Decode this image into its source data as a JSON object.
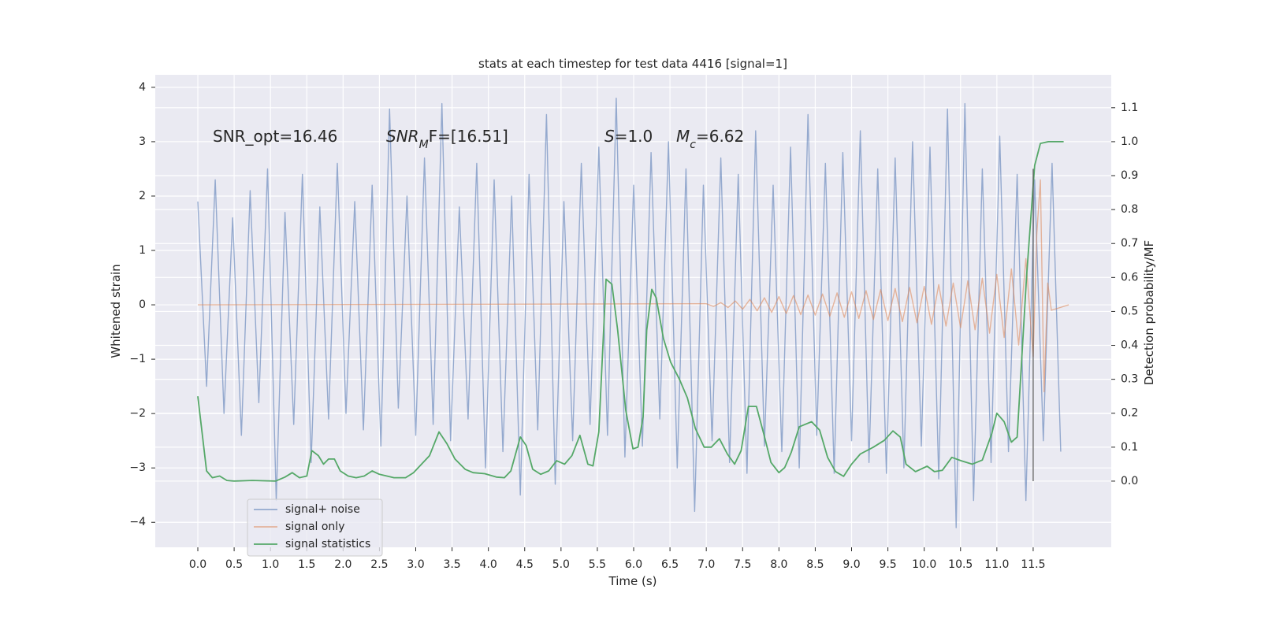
{
  "chart_data": {
    "type": "line",
    "title": "stats at each timestep for test data 4416 [signal=1]",
    "xlabel": "Time (s)",
    "ylabel": "Whitened strain",
    "y2label": "Detection probability/MF",
    "grid": true,
    "legend": "lower left",
    "xlim": [
      -0.586,
      12.575
    ],
    "ylim": [
      -4.46,
      4.23
    ],
    "y2lim": [
      -0.195,
      1.197
    ],
    "xticks": [
      {
        "value": 0,
        "label": "0.0"
      },
      0.5,
      {
        "value": 1,
        "label": "1.0"
      },
      1.5,
      {
        "value": 2,
        "label": "2.0"
      },
      2.5,
      {
        "value": 3,
        "label": "3.0"
      },
      3.5,
      {
        "value": 4,
        "label": "4.0"
      },
      4.5,
      {
        "value": 5,
        "label": "5.0"
      },
      5.5,
      {
        "value": 6,
        "label": "6.0"
      },
      6.5,
      {
        "value": 7,
        "label": "7.0"
      },
      7.5,
      {
        "value": 8,
        "label": "8.0"
      },
      8.5,
      {
        "value": 9,
        "label": "9.0"
      },
      9.5,
      {
        "value": 10,
        "label": "10.0"
      },
      10.5,
      {
        "value": 11,
        "label": "11.0"
      },
      11.5
    ],
    "yticks": [
      {
        "value": -4,
        "label": "−4"
      },
      {
        "value": -3,
        "label": "−3"
      },
      {
        "value": -2,
        "label": "−2"
      },
      {
        "value": -1,
        "label": "−1"
      },
      0,
      1,
      2,
      3,
      4
    ],
    "y2ticks": [
      {
        "value": 0,
        "label": "0.0"
      },
      0.1,
      0.2,
      0.3,
      0.4,
      0.5,
      0.6,
      0.7,
      0.8,
      0.9,
      {
        "value": 1,
        "label": "1.0"
      },
      1.1
    ],
    "annotations": [
      {
        "text": "SNR_opt=16.46"
      },
      {
        "italic": "SNR",
        "sub": "M",
        "text": "F=[16.51]"
      },
      {
        "italic": "S",
        "text": "=1.0"
      },
      {
        "italic": "M",
        "sub": "c",
        "text": "=6.62"
      }
    ],
    "vline": {
      "x": 11.5,
      "y2": [
        0,
        0.92
      ]
    },
    "series": [
      {
        "name": "signal+ noise",
        "color": "#4c72b0",
        "x": [
          0,
          0.12,
          0.24,
          0.36,
          0.48,
          0.6,
          0.72,
          0.84,
          0.96,
          1.08,
          1.2,
          1.32,
          1.44,
          1.56,
          1.68,
          1.8,
          1.92,
          2.04,
          2.16,
          2.28,
          2.4,
          2.52,
          2.64,
          2.76,
          2.88,
          3,
          3.12,
          3.24,
          3.36,
          3.48,
          3.6,
          3.72,
          3.84,
          3.96,
          4.08,
          4.2,
          4.32,
          4.44,
          4.56,
          4.68,
          4.8,
          4.92,
          5.04,
          5.16,
          5.28,
          5.4,
          5.52,
          5.64,
          5.76,
          5.88,
          6,
          6.12,
          6.24,
          6.36,
          6.48,
          6.6,
          6.72,
          6.84,
          6.96,
          7.08,
          7.2,
          7.32,
          7.44,
          7.56,
          7.68,
          7.8,
          7.92,
          8.04,
          8.16,
          8.28,
          8.4,
          8.52,
          8.64,
          8.76,
          8.88,
          9,
          9.12,
          9.24,
          9.36,
          9.48,
          9.6,
          9.72,
          9.84,
          9.96,
          10.08,
          10.2,
          10.32,
          10.44,
          10.56,
          10.68,
          10.8,
          10.92,
          11.04,
          11.16,
          11.28,
          11.4,
          11.52,
          11.64,
          11.76,
          11.88
        ],
        "values": [
          1.9,
          -1.5,
          2.3,
          -2.0,
          1.6,
          -2.4,
          2.1,
          -1.8,
          2.5,
          -3.6,
          1.7,
          -2.2,
          2.4,
          -2.9,
          1.8,
          -2.1,
          2.6,
          -2.0,
          1.9,
          -2.3,
          2.2,
          -2.6,
          3.6,
          -1.9,
          2.0,
          -2.4,
          2.7,
          -2.2,
          3.7,
          -2.5,
          1.8,
          -2.1,
          2.6,
          -3.0,
          2.3,
          -2.7,
          2.0,
          -3.5,
          2.4,
          -2.3,
          3.5,
          -3.3,
          1.9,
          -2.5,
          2.6,
          -2.2,
          2.9,
          -2.4,
          3.8,
          -2.8,
          2.2,
          -2.6,
          2.8,
          -2.1,
          3.0,
          -3.0,
          2.5,
          -3.8,
          2.2,
          -2.5,
          2.7,
          -2.9,
          2.4,
          -3.1,
          3.2,
          -2.6,
          2.2,
          -2.7,
          2.9,
          -3.0,
          3.5,
          -2.4,
          2.6,
          -3.1,
          2.8,
          -2.5,
          3.2,
          -2.9,
          2.5,
          -3.1,
          2.7,
          -3.0,
          3.0,
          -2.6,
          2.9,
          -3.2,
          3.6,
          -4.1,
          3.7,
          -3.6,
          2.5,
          -2.9,
          3.1,
          -2.7,
          2.4,
          -3.6,
          2.3,
          -2.5,
          2.6,
          -2.7
        ]
      },
      {
        "name": "signal only",
        "color": "#dd8452",
        "x": [
          0,
          7.0,
          7.1,
          7.2,
          7.3,
          7.4,
          7.5,
          7.6,
          7.7,
          7.8,
          7.9,
          8.0,
          8.1,
          8.2,
          8.3,
          8.4,
          8.5,
          8.6,
          8.7,
          8.8,
          8.9,
          9.0,
          9.1,
          9.2,
          9.3,
          9.4,
          9.5,
          9.6,
          9.7,
          9.8,
          9.9,
          10.0,
          10.1,
          10.2,
          10.3,
          10.4,
          10.5,
          10.6,
          10.7,
          10.8,
          10.9,
          11.0,
          11.1,
          11.2,
          11.3,
          11.4,
          11.5,
          11.55,
          11.6,
          11.65,
          11.7,
          11.75,
          11.99
        ],
        "values": [
          0,
          0.02,
          -0.03,
          0.04,
          -0.05,
          0.07,
          -0.08,
          0.1,
          -0.11,
          0.13,
          -0.14,
          0.15,
          -0.16,
          0.17,
          -0.18,
          0.18,
          -0.19,
          0.2,
          -0.21,
          0.22,
          -0.23,
          0.24,
          -0.25,
          0.26,
          -0.27,
          0.28,
          -0.29,
          0.3,
          -0.31,
          0.32,
          -0.33,
          0.34,
          -0.36,
          0.37,
          -0.39,
          0.4,
          -0.42,
          0.44,
          -0.46,
          0.49,
          -0.52,
          0.56,
          -0.6,
          0.66,
          -0.74,
          0.85,
          -0.95,
          1.3,
          2.3,
          -1.6,
          0.4,
          -0.1,
          0
        ]
      },
      {
        "name": "signal statistics",
        "color": "#55a868",
        "axis": "y2",
        "x": [
          0,
          0.12,
          0.2,
          0.3,
          0.4,
          0.5,
          0.75,
          1.07,
          1.2,
          1.3,
          1.4,
          1.5,
          1.57,
          1.66,
          1.73,
          1.8,
          1.88,
          1.96,
          2.07,
          2.18,
          2.29,
          2.4,
          2.5,
          2.7,
          2.86,
          2.97,
          3.08,
          3.19,
          3.32,
          3.43,
          3.54,
          3.68,
          3.79,
          3.95,
          4.11,
          4.22,
          4.31,
          4.44,
          4.52,
          4.61,
          4.72,
          4.83,
          4.94,
          5.05,
          5.15,
          5.26,
          5.37,
          5.44,
          5.52,
          5.62,
          5.7,
          5.78,
          5.89,
          5.99,
          6.06,
          6.13,
          6.18,
          6.25,
          6.31,
          6.41,
          6.51,
          6.63,
          6.74,
          6.85,
          6.97,
          7.07,
          7.18,
          7.29,
          7.39,
          7.48,
          7.58,
          7.69,
          7.79,
          7.89,
          8.0,
          8.08,
          8.17,
          8.28,
          8.45,
          8.56,
          8.67,
          8.78,
          8.89,
          9.0,
          9.12,
          9.3,
          9.45,
          9.57,
          9.67,
          9.75,
          9.88,
          10.04,
          10.14,
          10.25,
          10.38,
          10.51,
          10.66,
          10.8,
          10.93,
          11.0,
          11.1,
          11.2,
          11.28,
          11.41,
          11.52,
          11.6,
          11.71,
          11.92
        ],
        "values": [
          0.25,
          0.03,
          0.01,
          0.015,
          0.002,
          0,
          0.002,
          0,
          0.012,
          0.025,
          0.01,
          0.015,
          0.09,
          0.075,
          0.05,
          0.065,
          0.065,
          0.03,
          0.015,
          0.01,
          0.015,
          0.03,
          0.02,
          0.01,
          0.01,
          0.025,
          0.05,
          0.075,
          0.145,
          0.11,
          0.065,
          0.035,
          0.025,
          0.022,
          0.012,
          0.01,
          0.03,
          0.13,
          0.105,
          0.035,
          0.02,
          0.03,
          0.06,
          0.05,
          0.075,
          0.135,
          0.05,
          0.045,
          0.145,
          0.595,
          0.58,
          0.445,
          0.21,
          0.095,
          0.1,
          0.19,
          0.445,
          0.565,
          0.54,
          0.42,
          0.35,
          0.3,
          0.245,
          0.155,
          0.1,
          0.1,
          0.125,
          0.08,
          0.05,
          0.09,
          0.22,
          0.22,
          0.14,
          0.055,
          0.025,
          0.04,
          0.085,
          0.16,
          0.175,
          0.15,
          0.07,
          0.028,
          0.014,
          0.05,
          0.08,
          0.1,
          0.12,
          0.148,
          0.13,
          0.05,
          0.028,
          0.044,
          0.028,
          0.032,
          0.07,
          0.06,
          0.05,
          0.062,
          0.14,
          0.2,
          0.175,
          0.115,
          0.13,
          0.605,
          0.93,
          0.995,
          1.0,
          1.0
        ]
      }
    ]
  }
}
